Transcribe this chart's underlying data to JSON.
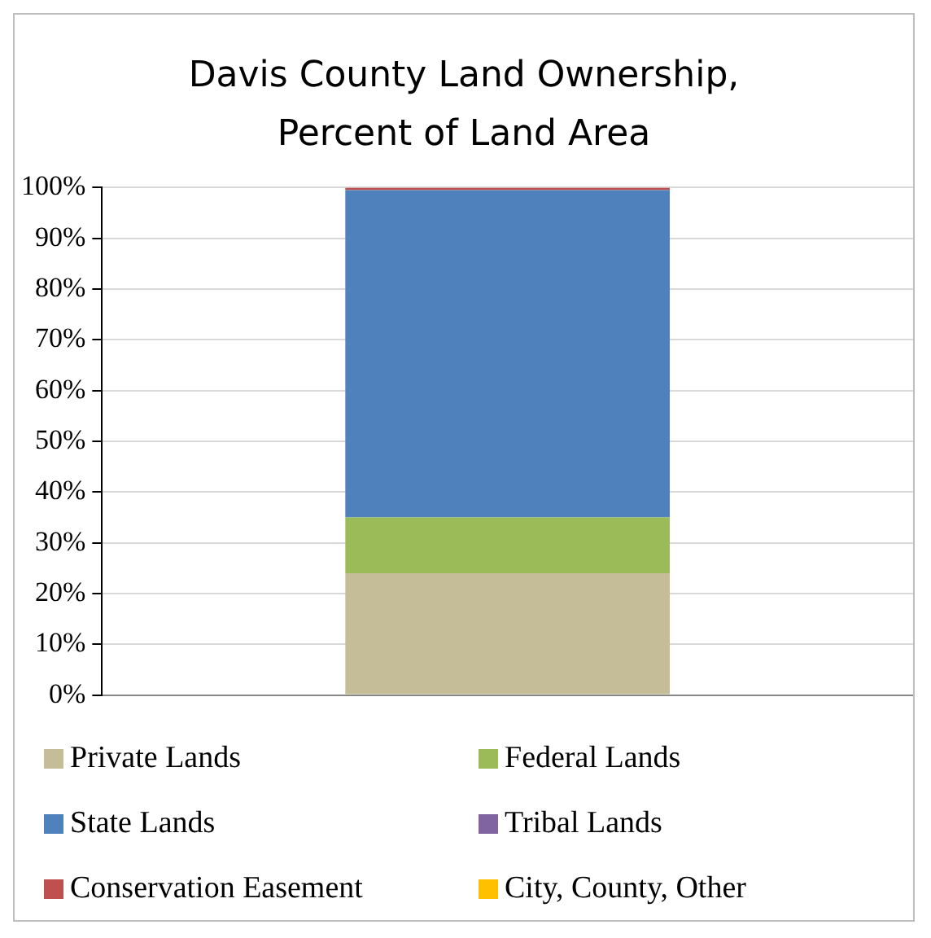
{
  "chart_data": {
    "type": "bar",
    "title": "Davis County Land Ownership, Percent of Land Area",
    "categories": [
      null
    ],
    "stacked": true,
    "series": [
      {
        "name": "Private Lands",
        "color": "#c4bd97",
        "values": [
          24
        ]
      },
      {
        "name": "Federal Lands",
        "color": "#9bbb59",
        "values": [
          11
        ]
      },
      {
        "name": "State Lands",
        "color": "#4f81bd",
        "values": [
          64.5
        ]
      },
      {
        "name": "Tribal Lands",
        "color": "#8064a2",
        "values": [
          0
        ]
      },
      {
        "name": "Conservation Easement",
        "color": "#c0504d",
        "values": [
          0.5
        ]
      },
      {
        "name": "City, County, Other",
        "color": "#ffc000",
        "values": [
          0
        ]
      }
    ],
    "ylim": [
      0,
      100
    ],
    "yticks": [
      {
        "value": 0,
        "label": "0%"
      },
      {
        "value": 10,
        "label": "10%"
      },
      {
        "value": 20,
        "label": "20%"
      },
      {
        "value": 30,
        "label": "30%"
      },
      {
        "value": 40,
        "label": "40%"
      },
      {
        "value": 50,
        "label": "50%"
      },
      {
        "value": 60,
        "label": "60%"
      },
      {
        "value": 70,
        "label": "70%"
      },
      {
        "value": 80,
        "label": "80%"
      },
      {
        "value": 90,
        "label": "90%"
      },
      {
        "value": 100,
        "label": "100%"
      }
    ],
    "grid": "y",
    "legend": "bottom",
    "tick_labels": "y"
  }
}
